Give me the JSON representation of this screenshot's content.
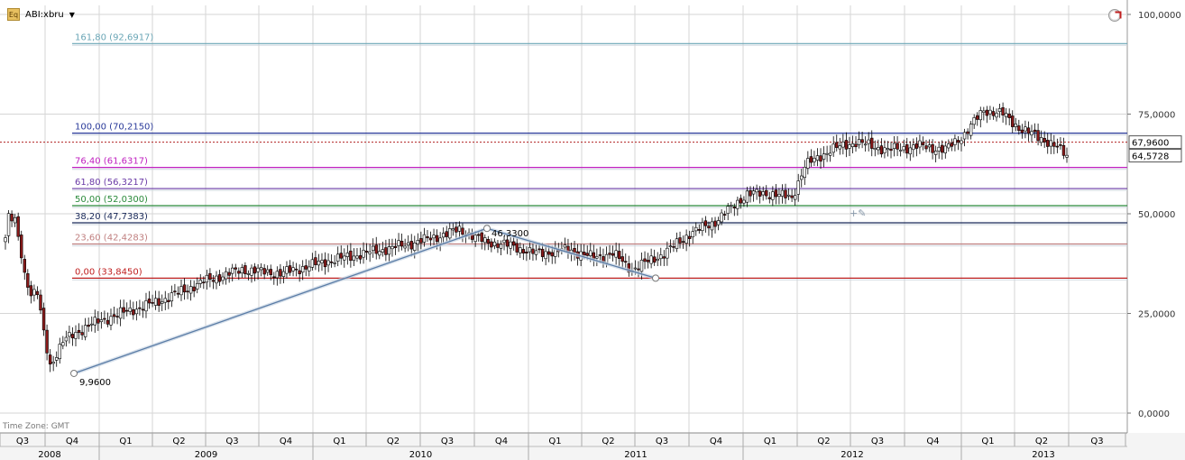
{
  "header": {
    "ticker": "ABI:xbru",
    "badge": "Eq"
  },
  "timezone": "Time Zone: GMT",
  "colors": {
    "up": "#ffffff",
    "down": "#8b1a1a",
    "wick": "#000000",
    "grid": "#d6d6d6",
    "trend": "#5a7ca6"
  },
  "chart_data": {
    "type": "candlestick",
    "title": "",
    "y_axis": {
      "min": 0,
      "max": 100,
      "ticks": [
        "0,0000",
        "25,0000",
        "50,0000",
        "75,0000",
        "100,0000"
      ],
      "tick_values": [
        0,
        25,
        50,
        75,
        100
      ]
    },
    "x_axis": {
      "quarters": [
        "Q3",
        "Q4",
        "Q1",
        "Q2",
        "Q3",
        "Q4",
        "Q1",
        "Q2",
        "Q3",
        "Q4",
        "Q1",
        "Q2",
        "Q3",
        "Q4",
        "Q1",
        "Q2",
        "Q3",
        "Q4",
        "Q1",
        "Q2",
        "Q3"
      ],
      "years": [
        "2008",
        "2009",
        "2010",
        "2011",
        "2012",
        "2013"
      ]
    },
    "fibonacci_levels": [
      {
        "label": "161,80 (92,6917)",
        "value": 92.6917,
        "color": "#6aa6b6"
      },
      {
        "label": "100,00 (70,2150)",
        "value": 70.215,
        "color": "#2a3a9a"
      },
      {
        "label": "76,40 (61,6317)",
        "value": 61.6317,
        "color": "#c020c0"
      },
      {
        "label": "61,80 (56,3217)",
        "value": 56.3217,
        "color": "#6a3aa6"
      },
      {
        "label": "50,00 (52,0300)",
        "value": 52.03,
        "color": "#2a8a3a"
      },
      {
        "label": "38,20 (47,7383)",
        "value": 47.7383,
        "color": "#1a2a5a"
      },
      {
        "label": "23,60 (42,4283)",
        "value": 42.4283,
        "color": "#c08080"
      },
      {
        "label": "0,00 (33,8450)",
        "value": 33.845,
        "color": "#c02020"
      }
    ],
    "price_labels": [
      {
        "label": "67,9600",
        "value": 67.96
      },
      {
        "label": "64,5728",
        "value": 64.5728
      }
    ],
    "anchor_points": [
      {
        "label": "9,9600",
        "value": 9.96
      },
      {
        "label": "46,3300",
        "value": 46.33
      },
      {
        "label": "",
        "value": 33.85
      }
    ],
    "series_close_anchors": [
      [
        0,
        44
      ],
      [
        1,
        49
      ],
      [
        3,
        48
      ],
      [
        5,
        40
      ],
      [
        6,
        35
      ],
      [
        8,
        30
      ],
      [
        10,
        30
      ],
      [
        12,
        20
      ],
      [
        14,
        12
      ],
      [
        18,
        18
      ],
      [
        26,
        22
      ],
      [
        36,
        25
      ],
      [
        48,
        28
      ],
      [
        62,
        33
      ],
      [
        74,
        36
      ],
      [
        86,
        35
      ],
      [
        100,
        38
      ],
      [
        112,
        40
      ],
      [
        124,
        42
      ],
      [
        134,
        44
      ],
      [
        142,
        46
      ],
      [
        150,
        43
      ],
      [
        158,
        42
      ],
      [
        166,
        40
      ],
      [
        176,
        41
      ],
      [
        184,
        39
      ],
      [
        190,
        40
      ],
      [
        196,
        36
      ],
      [
        206,
        40
      ],
      [
        214,
        45
      ],
      [
        222,
        48
      ],
      [
        232,
        55
      ],
      [
        240,
        55
      ],
      [
        246,
        54
      ],
      [
        250,
        62
      ],
      [
        258,
        66
      ],
      [
        266,
        68
      ],
      [
        276,
        66
      ],
      [
        286,
        67
      ],
      [
        294,
        66
      ],
      [
        300,
        70
      ],
      [
        306,
        76
      ],
      [
        312,
        75
      ],
      [
        318,
        71
      ],
      [
        324,
        69
      ],
      [
        330,
        66
      ],
      [
        332,
        64.6
      ]
    ]
  }
}
